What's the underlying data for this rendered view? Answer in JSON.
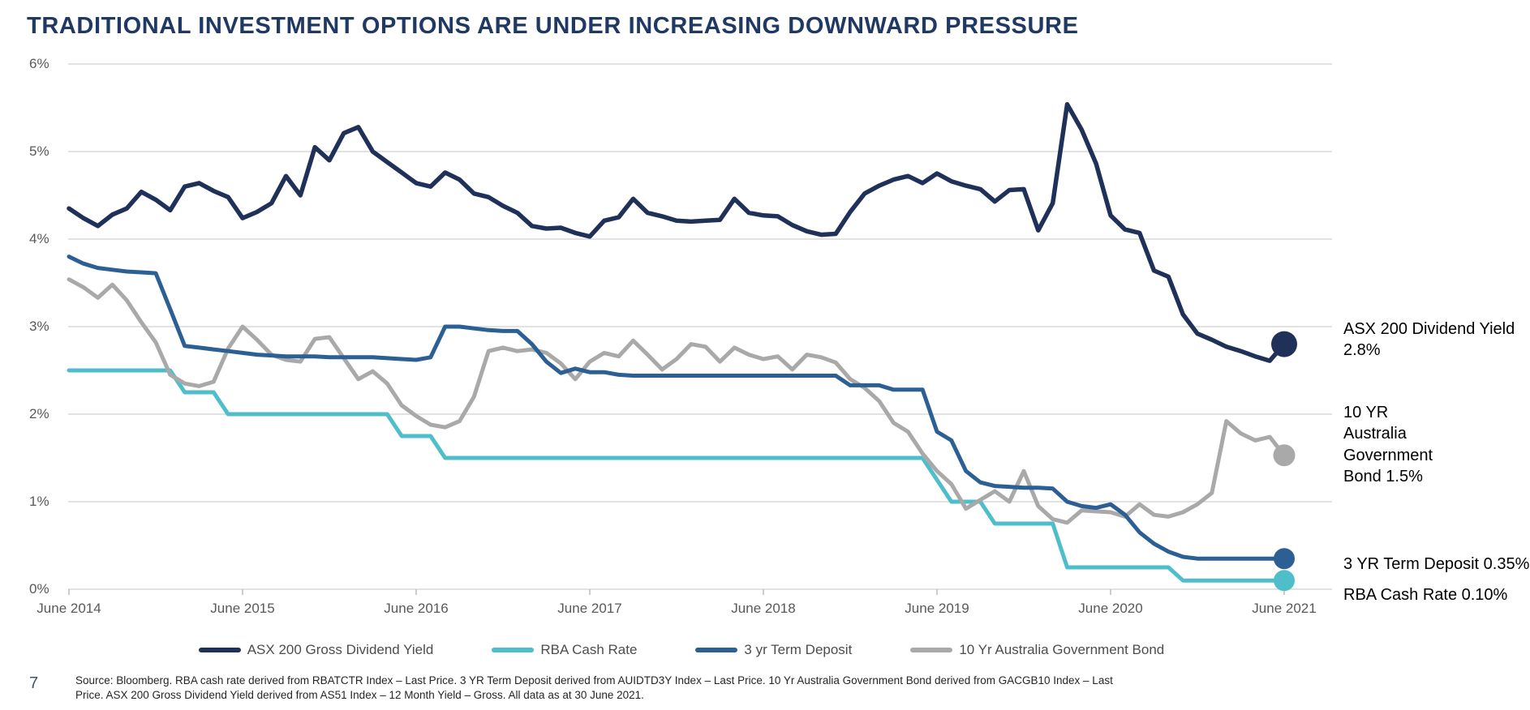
{
  "title": "TRADITIONAL INVESTMENT OPTIONS ARE UNDER INCREASING DOWNWARD PRESSURE",
  "page_number": "7",
  "source_note": "Source: Bloomberg. RBA cash rate derived from RBATCTR Index – Last Price. 3 YR Term Deposit derived from AUIDTD3Y Index – Last Price. 10 Yr Australia Government Bond derived from GACGB10 Index – Last Price. ASX 200 Gross Dividend Yield derived from AS51 Index – 12 Month Yield – Gross. All data as at 30 June 2021.",
  "annotations": {
    "asx": "ASX 200 Dividend Yield\n2.8%",
    "bond": "10 YR\nAustralia\nGovernment\nBond 1.5%",
    "term_deposit": "3 YR Term Deposit 0.35%",
    "cash_rate": "RBA Cash Rate 0.10%"
  },
  "colors": {
    "navy": "#1f3158",
    "blue": "#2c5f94",
    "teal": "#4fbecb",
    "gray": "#a9a9a9",
    "gridline": "#d9d9d9",
    "tick": "#bfbfbf",
    "axis_text": "#595959",
    "title": "#1f3864"
  },
  "chart_data": {
    "type": "line",
    "title": "TRADITIONAL INVESTMENT OPTIONS ARE UNDER INCREASING DOWNWARD PRESSURE",
    "xlabel": "",
    "ylabel": "",
    "x_unit": "month",
    "x_range": [
      "June 2014",
      "June 2021"
    ],
    "x_tick_labels": [
      "June 2014",
      "June 2015",
      "June 2016",
      "June 2017",
      "June 2018",
      "June 2019",
      "June 2020",
      "June 2021"
    ],
    "y_tick_labels": [
      "0%",
      "1%",
      "2%",
      "3%",
      "4%",
      "5%",
      "6%"
    ],
    "ylim": [
      0,
      6
    ],
    "grid": true,
    "legend_position": "bottom",
    "series": [
      {
        "name": "ASX 200 Gross Dividend Yield",
        "color": "#1f3158",
        "line_width": 5.5,
        "dot_radius": 16,
        "end_value_label": "2.8%",
        "values": [
          4.35,
          4.24,
          4.15,
          4.28,
          4.35,
          4.54,
          4.45,
          4.33,
          4.6,
          4.64,
          4.55,
          4.48,
          4.24,
          4.31,
          4.41,
          4.72,
          4.5,
          5.05,
          4.9,
          5.21,
          5.28,
          5.0,
          4.88,
          4.76,
          4.64,
          4.6,
          4.76,
          4.68,
          4.52,
          4.48,
          4.38,
          4.3,
          4.15,
          4.12,
          4.13,
          4.07,
          4.03,
          4.21,
          4.25,
          4.46,
          4.3,
          4.26,
          4.21,
          4.2,
          4.21,
          4.22,
          4.46,
          4.3,
          4.27,
          4.26,
          4.16,
          4.09,
          4.05,
          4.06,
          4.31,
          4.52,
          4.61,
          4.68,
          4.72,
          4.64,
          4.75,
          4.66,
          4.61,
          4.57,
          4.43,
          4.56,
          4.57,
          4.1,
          4.41,
          5.54,
          5.25,
          4.86,
          4.27,
          4.11,
          4.07,
          3.64,
          3.57,
          3.14,
          2.92,
          2.85,
          2.77,
          2.72,
          2.66,
          2.61,
          2.8
        ]
      },
      {
        "name": "RBA Cash Rate",
        "color": "#4fbecb",
        "line_width": 5,
        "dot_radius": 13,
        "end_value_label": "0.10%",
        "values": [
          2.5,
          2.5,
          2.5,
          2.5,
          2.5,
          2.5,
          2.5,
          2.5,
          2.25,
          2.25,
          2.25,
          2.0,
          2.0,
          2.0,
          2.0,
          2.0,
          2.0,
          2.0,
          2.0,
          2.0,
          2.0,
          2.0,
          2.0,
          1.75,
          1.75,
          1.75,
          1.5,
          1.5,
          1.5,
          1.5,
          1.5,
          1.5,
          1.5,
          1.5,
          1.5,
          1.5,
          1.5,
          1.5,
          1.5,
          1.5,
          1.5,
          1.5,
          1.5,
          1.5,
          1.5,
          1.5,
          1.5,
          1.5,
          1.5,
          1.5,
          1.5,
          1.5,
          1.5,
          1.5,
          1.5,
          1.5,
          1.5,
          1.5,
          1.5,
          1.5,
          1.25,
          1.0,
          1.0,
          1.0,
          0.75,
          0.75,
          0.75,
          0.75,
          0.75,
          0.25,
          0.25,
          0.25,
          0.25,
          0.25,
          0.25,
          0.25,
          0.25,
          0.1,
          0.1,
          0.1,
          0.1,
          0.1,
          0.1,
          0.1,
          0.1
        ]
      },
      {
        "name": "3 yr Term Deposit",
        "color": "#2c5f94",
        "line_width": 5,
        "dot_radius": 13,
        "end_value_label": "0.35%",
        "values": [
          3.8,
          3.72,
          3.67,
          3.65,
          3.63,
          3.62,
          3.61,
          3.2,
          2.78,
          2.76,
          2.74,
          2.72,
          2.7,
          2.68,
          2.67,
          2.66,
          2.66,
          2.66,
          2.65,
          2.65,
          2.65,
          2.65,
          2.64,
          2.63,
          2.62,
          2.65,
          3.0,
          3.0,
          2.98,
          2.96,
          2.95,
          2.95,
          2.8,
          2.6,
          2.47,
          2.52,
          2.48,
          2.48,
          2.45,
          2.44,
          2.44,
          2.44,
          2.44,
          2.44,
          2.44,
          2.44,
          2.44,
          2.44,
          2.44,
          2.44,
          2.44,
          2.44,
          2.44,
          2.44,
          2.33,
          2.33,
          2.33,
          2.28,
          2.28,
          2.28,
          1.8,
          1.7,
          1.35,
          1.22,
          1.18,
          1.17,
          1.16,
          1.16,
          1.15,
          1.0,
          0.95,
          0.93,
          0.97,
          0.85,
          0.65,
          0.52,
          0.43,
          0.37,
          0.35,
          0.35,
          0.35,
          0.35,
          0.35,
          0.35,
          0.35
        ]
      },
      {
        "name": "10 Yr Australia Government Bond",
        "color": "#a9a9a9",
        "line_width": 5,
        "dot_radius": 13.5,
        "end_value_label": "1.5%",
        "values": [
          3.54,
          3.45,
          3.33,
          3.48,
          3.3,
          3.05,
          2.82,
          2.45,
          2.35,
          2.32,
          2.37,
          2.75,
          3.0,
          2.85,
          2.68,
          2.62,
          2.6,
          2.86,
          2.88,
          2.64,
          2.4,
          2.49,
          2.35,
          2.1,
          1.98,
          1.88,
          1.85,
          1.92,
          2.2,
          2.72,
          2.76,
          2.72,
          2.74,
          2.7,
          2.58,
          2.4,
          2.6,
          2.7,
          2.66,
          2.84,
          2.68,
          2.51,
          2.63,
          2.8,
          2.77,
          2.6,
          2.76,
          2.68,
          2.63,
          2.66,
          2.51,
          2.68,
          2.65,
          2.59,
          2.4,
          2.3,
          2.15,
          1.9,
          1.8,
          1.55,
          1.35,
          1.2,
          0.92,
          1.02,
          1.12,
          1.0,
          1.35,
          0.95,
          0.8,
          0.76,
          0.9,
          0.89,
          0.88,
          0.83,
          0.97,
          0.85,
          0.83,
          0.88,
          0.97,
          1.1,
          1.92,
          1.78,
          1.7,
          1.74,
          1.53
        ]
      }
    ]
  }
}
